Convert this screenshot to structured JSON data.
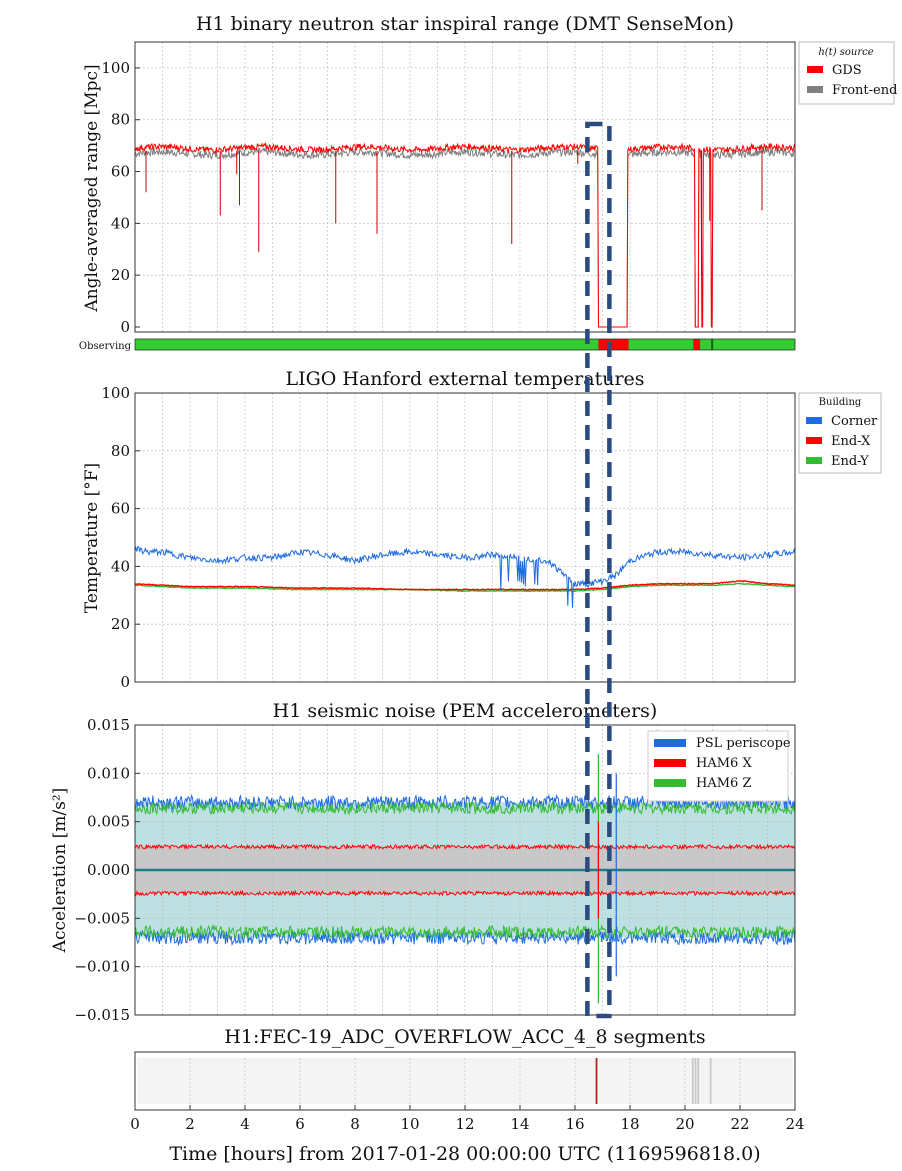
{
  "figure": {
    "xlabel": "Time [hours] from 2017-01-28 00:00:00 UTC (1169596818.0)",
    "xticks": [
      "0",
      "2",
      "4",
      "6",
      "8",
      "10",
      "12",
      "14",
      "16",
      "18",
      "20",
      "22",
      "24"
    ]
  },
  "highlight": {
    "start_hour": 16.45,
    "end_hour": 17.25,
    "color": "#2a4a80",
    "style": "dashed"
  },
  "chart_data": [
    {
      "type": "line",
      "title": "H1 binary neutron star inspiral range (DMT SenseMon)",
      "ylabel": "Angle-averaged range [Mpc]",
      "xlim": [
        0,
        24
      ],
      "ylim": [
        0,
        110
      ],
      "yticks": [
        "0",
        "20",
        "40",
        "60",
        "80",
        "100"
      ],
      "legend": {
        "title": "h(t) source",
        "placement": "outside-right"
      },
      "series": [
        {
          "name": "GDS",
          "color": "#ff0000",
          "level": 69,
          "noise": 1.2
        },
        {
          "name": "Front-end",
          "color": "#808080",
          "level": 67,
          "noise": 1.5
        }
      ],
      "x_notes": "range drops to 0 between ~16.8h and ~17.9h; spikes down at listed times",
      "dips": [
        {
          "x": 0.4,
          "y": 52
        },
        {
          "x": 3.1,
          "y": 43
        },
        {
          "x": 3.7,
          "y": 59
        },
        {
          "x": 3.8,
          "y": 47
        },
        {
          "x": 4.5,
          "y": 29
        },
        {
          "x": 7.3,
          "y": 40
        },
        {
          "x": 8.8,
          "y": 36
        },
        {
          "x": 13.7,
          "y": 32
        },
        {
          "x": 16.1,
          "y": 63
        },
        {
          "x": 20.6,
          "y": 20
        },
        {
          "x": 20.9,
          "y": 41
        },
        {
          "x": 22.8,
          "y": 45
        }
      ],
      "zeros": [
        [
          16.85,
          17.9
        ],
        [
          20.35,
          20.5
        ],
        [
          20.6,
          20.65
        ],
        [
          20.95,
          21.0
        ]
      ],
      "state_bar": {
        "label": "Observing",
        "on_color": "#33cc33",
        "off_color": "#ff0000",
        "off_segments": [
          [
            16.85,
            17.95
          ],
          [
            20.3,
            20.55
          ]
        ],
        "dark_marks": [
          20.95
        ]
      }
    },
    {
      "type": "line",
      "title": "LIGO Hanford external temperatures",
      "ylabel": "Temperature [°F]",
      "xlim": [
        0,
        24
      ],
      "ylim": [
        0,
        100
      ],
      "yticks": [
        "0",
        "20",
        "40",
        "60",
        "80",
        "100"
      ],
      "legend": {
        "title": "Building",
        "placement": "outside-right"
      },
      "series": [
        {
          "name": "Corner",
          "color": "#1f6be0",
          "x": [
            0,
            0.5,
            1,
            2,
            3,
            4,
            5,
            6,
            7,
            8,
            9,
            10,
            11,
            12,
            13,
            14,
            15,
            15.5,
            16,
            16.5,
            17,
            17.5,
            18,
            19,
            20,
            21,
            22,
            23,
            24
          ],
          "y": [
            46,
            45,
            45,
            43,
            42,
            43,
            43,
            45,
            44,
            42,
            44,
            45,
            44,
            43,
            44,
            43,
            42,
            38,
            34,
            34,
            35,
            37,
            42,
            45,
            45,
            44,
            43,
            44,
            45
          ]
        },
        {
          "name": "End-X",
          "color": "#ff0000",
          "x": [
            0,
            2,
            4,
            6,
            8,
            10,
            12,
            14,
            16,
            17,
            18,
            19,
            20,
            21,
            22,
            23,
            24
          ],
          "y": [
            34,
            33,
            33,
            32.5,
            32.5,
            32,
            32,
            32,
            32,
            32.5,
            33.5,
            34,
            34,
            34,
            35,
            34,
            33.5
          ]
        },
        {
          "name": "End-Y",
          "color": "#33bb33",
          "x": [
            0,
            2,
            4,
            6,
            8,
            10,
            12,
            14,
            16,
            17,
            18,
            19,
            20,
            21,
            22,
            23,
            24
          ],
          "y": [
            33.5,
            32.5,
            32.5,
            32,
            32,
            32,
            31.5,
            31.5,
            31.5,
            32,
            33,
            33.5,
            33.5,
            33.5,
            34,
            33.5,
            33
          ]
        }
      ]
    },
    {
      "type": "area",
      "title": "H1 seismic noise (PEM accelerometers)",
      "ylabel": "Acceleration [m/s²]",
      "xlim": [
        0,
        24
      ],
      "ylim": [
        -0.015,
        0.015
      ],
      "yticks": [
        "0.015",
        "0.010",
        "0.005",
        "0.000",
        "−0.005",
        "−0.010",
        "−0.015"
      ],
      "legend": {
        "placement": "upper right"
      },
      "series": [
        {
          "name": "PSL periscope",
          "color": "#1f6be0",
          "envelope": 0.007,
          "fill": "#bfe0e2"
        },
        {
          "name": "HAM6 X",
          "color": "#ff0000",
          "envelope": 0.0024,
          "fill": "#c8c8c8"
        },
        {
          "name": "HAM6 Z",
          "color": "#33bb33",
          "envelope": 0.0064
        }
      ],
      "spikes": [
        {
          "x": 16.85,
          "max": 0.012,
          "min": -0.0138,
          "series": "HAM6 Z"
        },
        {
          "x": 16.85,
          "max": 0.005,
          "min": -0.005,
          "series": "HAM6 X"
        },
        {
          "x": 17.5,
          "max": 0.01,
          "min": -0.011,
          "series": "PSL periscope"
        }
      ]
    },
    {
      "type": "bar",
      "title": "H1:FEC-19_ADC_OVERFLOW_ACC_4_8 segments",
      "xlim": [
        0,
        24
      ],
      "segments": [
        {
          "x": 16.75,
          "color": "#b22222"
        },
        {
          "x": 20.25,
          "color": "#c8c8c8"
        },
        {
          "x": 20.35,
          "color": "#c8c8c8"
        },
        {
          "x": 20.45,
          "color": "#c8c8c8"
        },
        {
          "x": 20.9,
          "color": "#c8c8c8"
        }
      ]
    }
  ]
}
